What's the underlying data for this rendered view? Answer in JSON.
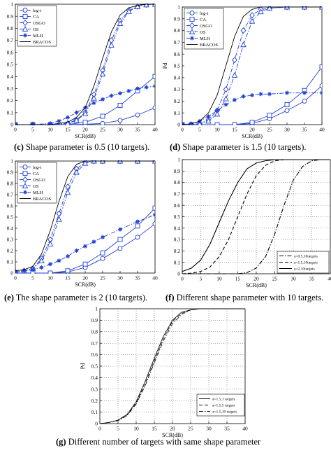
{
  "chart_data": [
    {
      "id": "c",
      "type": "line",
      "caption_label": "(c)",
      "caption_text": "Shape parameter is 0.5 (10 targets).",
      "xlabel": "SCR(dB)",
      "ylabel": "Pd",
      "xlim": [
        0,
        40
      ],
      "ylim": [
        0,
        1
      ],
      "xticks": [
        "0",
        "5",
        "10",
        "15",
        "20",
        "25",
        "30",
        "35",
        "40"
      ],
      "yticks": [
        "0",
        "0.1",
        "0.2",
        "0.3",
        "0.4",
        "0.5",
        "0.6",
        "0.7",
        "0.8",
        "0.9",
        "1"
      ],
      "grid": false,
      "legend_position": "top-left",
      "legend_entries": [
        "log-t",
        "CA",
        "OSGO",
        "OS",
        "MLH",
        "BRACOS"
      ],
      "series": [
        {
          "name": "log-t",
          "marker": "circle",
          "dash": "solid",
          "x": [
            0,
            5,
            10,
            15,
            20,
            25,
            30,
            35,
            40
          ],
          "y": [
            0,
            0,
            0,
            0,
            0.003,
            0.01,
            0.035,
            0.08,
            0.14
          ]
        },
        {
          "name": "CA",
          "marker": "square",
          "dash": "solid",
          "x": [
            0,
            5,
            10,
            15,
            20,
            25,
            30,
            35,
            40
          ],
          "y": [
            0,
            0,
            0,
            0.002,
            0.02,
            0.07,
            0.16,
            0.28,
            0.4
          ]
        },
        {
          "name": "OSGO",
          "marker": "diamond",
          "dash": "dashdot",
          "x": [
            0,
            5,
            10,
            15,
            17.5,
            20,
            22.5,
            25,
            27.5,
            30,
            32.5,
            35,
            37.5,
            40
          ],
          "y": [
            0,
            0,
            0,
            0.01,
            0.04,
            0.1,
            0.25,
            0.45,
            0.7,
            0.86,
            0.95,
            0.98,
            0.995,
            1
          ]
        },
        {
          "name": "OS",
          "marker": "triangle",
          "dash": "dashdot",
          "x": [
            0,
            5,
            10,
            15,
            17.5,
            20,
            22.5,
            25,
            27.5,
            30,
            32.5,
            35,
            37.5,
            40
          ],
          "y": [
            0,
            0,
            0,
            0.01,
            0.035,
            0.09,
            0.22,
            0.42,
            0.66,
            0.84,
            0.94,
            0.98,
            0.995,
            1
          ]
        },
        {
          "name": "MLH",
          "marker": "star",
          "dash": "dashdot",
          "x": [
            0,
            5,
            10,
            12.5,
            15,
            17.5,
            20,
            22.5,
            25,
            27.5,
            30,
            32.5,
            35,
            37.5,
            40
          ],
          "y": [
            0,
            0,
            0.01,
            0.03,
            0.06,
            0.1,
            0.14,
            0.18,
            0.21,
            0.24,
            0.26,
            0.28,
            0.3,
            0.31,
            0.32
          ]
        },
        {
          "name": "BRACOS",
          "marker": "none",
          "dash": "solid",
          "x": [
            0,
            5,
            10,
            15,
            17.5,
            20,
            22.5,
            25,
            27.5,
            30,
            32.5,
            35,
            37.5,
            40
          ],
          "y": [
            0,
            0,
            0,
            0.02,
            0.06,
            0.14,
            0.32,
            0.55,
            0.77,
            0.91,
            0.97,
            0.99,
            1,
            1
          ]
        }
      ]
    },
    {
      "id": "d",
      "type": "line",
      "caption_label": "(d)",
      "caption_text": "Shape parameter is 1.5 (10 targets).",
      "xlabel": "SCR(dB)",
      "ylabel": "Pd",
      "xlim": [
        0,
        40
      ],
      "ylim": [
        0,
        1
      ],
      "xticks": [
        "0",
        "5",
        "10",
        "15",
        "20",
        "25",
        "30",
        "35",
        "40"
      ],
      "yticks": [
        "0",
        "0.1",
        "0.2",
        "0.3",
        "0.4",
        "0.5",
        "0.6",
        "0.7",
        "0.8",
        "0.9",
        "1"
      ],
      "grid": false,
      "legend_position": "top-left",
      "legend_entries": [
        "log-t",
        "CA",
        "OSGO",
        "OS",
        "MLH",
        "BRACOS"
      ],
      "series": [
        {
          "name": "log-t",
          "marker": "circle",
          "dash": "solid",
          "x": [
            0,
            5,
            10,
            15,
            20,
            25,
            30,
            35,
            40
          ],
          "y": [
            0,
            0,
            0,
            0,
            0.01,
            0.05,
            0.12,
            0.2,
            0.33
          ]
        },
        {
          "name": "CA",
          "marker": "square",
          "dash": "solid",
          "x": [
            0,
            5,
            10,
            15,
            20,
            25,
            30,
            35,
            40
          ],
          "y": [
            0,
            0,
            0,
            0,
            0.02,
            0.08,
            0.17,
            0.29,
            0.49
          ]
        },
        {
          "name": "OSGO",
          "marker": "diamond",
          "dash": "dashdot",
          "x": [
            0,
            2.5,
            5,
            7.5,
            10,
            12.5,
            15,
            17.5,
            20,
            22.5,
            25,
            30,
            35,
            40
          ],
          "y": [
            0,
            0,
            0.01,
            0.04,
            0.12,
            0.3,
            0.55,
            0.8,
            0.93,
            0.98,
            0.99,
            1,
            1,
            1
          ]
        },
        {
          "name": "OS",
          "marker": "triangle",
          "dash": "dashdot",
          "x": [
            0,
            2.5,
            5,
            7.5,
            10,
            12.5,
            15,
            17.5,
            20,
            22.5,
            25,
            30,
            35,
            40
          ],
          "y": [
            0,
            0,
            0.005,
            0.03,
            0.09,
            0.22,
            0.42,
            0.68,
            0.88,
            0.96,
            0.99,
            1,
            1,
            1
          ]
        },
        {
          "name": "MLH",
          "marker": "star",
          "dash": "dashdot",
          "x": [
            0,
            2.5,
            5,
            7.5,
            10,
            12.5,
            15,
            17.5,
            20,
            22.5,
            25,
            30,
            35,
            40
          ],
          "y": [
            0,
            0.01,
            0.03,
            0.07,
            0.12,
            0.17,
            0.21,
            0.24,
            0.25,
            0.26,
            0.26,
            0.27,
            0.27,
            0.27
          ]
        },
        {
          "name": "BRACOS",
          "marker": "none",
          "dash": "solid",
          "x": [
            0,
            2.5,
            5,
            7.5,
            10,
            12.5,
            15,
            17.5,
            20,
            22.5,
            25,
            30,
            35,
            40
          ],
          "y": [
            0,
            0.005,
            0.03,
            0.1,
            0.25,
            0.5,
            0.75,
            0.92,
            0.98,
            1,
            1,
            1,
            1,
            1
          ]
        }
      ]
    },
    {
      "id": "e",
      "type": "line",
      "caption_label": "(e)",
      "caption_text": "The shape parameter is 2 (10 targets).",
      "xlabel": "SCR(dB)",
      "ylabel": "Pd",
      "xlim": [
        0,
        40
      ],
      "ylim": [
        0,
        1
      ],
      "xticks": [
        "0",
        "5",
        "10",
        "15",
        "20",
        "25",
        "30",
        "35",
        "40"
      ],
      "yticks": [
        "0",
        "0.1",
        "0.2",
        "0.3",
        "0.4",
        "0.5",
        "0.6",
        "0.7",
        "0.8",
        "0.9",
        "1"
      ],
      "grid": false,
      "legend_position": "top-left",
      "legend_entries": [
        "log-t",
        "CA",
        "OSGO",
        "OS",
        "MLH",
        "BRACOS"
      ],
      "series": [
        {
          "name": "log-t",
          "marker": "circle",
          "dash": "solid",
          "x": [
            0,
            5,
            10,
            15,
            20,
            25,
            30,
            35,
            40
          ],
          "y": [
            0,
            0,
            0,
            0.01,
            0.05,
            0.13,
            0.22,
            0.32,
            0.44
          ]
        },
        {
          "name": "CA",
          "marker": "square",
          "dash": "solid",
          "x": [
            0,
            5,
            10,
            15,
            20,
            25,
            30,
            35,
            40
          ],
          "y": [
            0,
            0,
            0,
            0.02,
            0.08,
            0.18,
            0.3,
            0.42,
            0.58
          ]
        },
        {
          "name": "OSGO",
          "marker": "diamond",
          "dash": "dashdot",
          "x": [
            0,
            2.5,
            5,
            7.5,
            10,
            12.5,
            15,
            17.5,
            20,
            22.5,
            25,
            30,
            35,
            40
          ],
          "y": [
            0.01,
            0.02,
            0.04,
            0.13,
            0.3,
            0.53,
            0.77,
            0.93,
            0.99,
            1,
            1,
            1,
            1,
            1
          ]
        },
        {
          "name": "OS",
          "marker": "triangle",
          "dash": "dashdot",
          "x": [
            0,
            2.5,
            5,
            7.5,
            10,
            12.5,
            15,
            17.5,
            20,
            22.5,
            25,
            30,
            35,
            40
          ],
          "y": [
            0.01,
            0.02,
            0.04,
            0.11,
            0.26,
            0.48,
            0.72,
            0.9,
            0.98,
            1,
            1,
            1,
            1,
            1
          ]
        },
        {
          "name": "MLH",
          "marker": "star",
          "dash": "dashdot",
          "x": [
            0,
            2.5,
            5,
            7.5,
            10,
            12.5,
            15,
            17.5,
            20,
            22.5,
            25,
            30,
            35,
            40
          ],
          "y": [
            0.01,
            0.02,
            0.03,
            0.05,
            0.08,
            0.11,
            0.15,
            0.2,
            0.24,
            0.28,
            0.32,
            0.39,
            0.46,
            0.52
          ]
        },
        {
          "name": "BRACOS",
          "marker": "none",
          "dash": "solid",
          "x": [
            0,
            2.5,
            5,
            7.5,
            10,
            12.5,
            15,
            17.5,
            20,
            22.5,
            25,
            30,
            35,
            40
          ],
          "y": [
            0.02,
            0.03,
            0.06,
            0.17,
            0.38,
            0.64,
            0.86,
            0.97,
            1,
            1,
            1,
            1,
            1,
            1
          ]
        }
      ]
    },
    {
      "id": "f",
      "type": "line",
      "caption_label": "(f)",
      "caption_text": "Different shape parameter with 10 targets.",
      "xlabel": "SCR(dB)",
      "ylabel": "",
      "xlim": [
        0,
        40
      ],
      "ylim": [
        0,
        1
      ],
      "xticks": [
        "0",
        "5",
        "10",
        "15",
        "20",
        "25",
        "30",
        "35",
        "40"
      ],
      "yticks": [
        "0",
        "0.1",
        "0.2",
        "0.3",
        "0.4",
        "0.5",
        "0.6",
        "0.7",
        "0.8",
        "0.9",
        "1"
      ],
      "grid": true,
      "legend_position": "bottom-right",
      "legend_entries": [
        "a=0.5,10targets",
        "a=1.5,10targets",
        "a=2,10targets"
      ],
      "series": [
        {
          "name": "a=0.5,10targets",
          "marker": "none",
          "dash": "dashdot",
          "x": [
            0,
            15,
            17.5,
            20,
            22.5,
            25,
            27.5,
            30,
            32.5,
            35,
            37.5,
            40
          ],
          "y": [
            0,
            0,
            0.01,
            0.05,
            0.15,
            0.35,
            0.6,
            0.82,
            0.94,
            0.99,
            1,
            1
          ]
        },
        {
          "name": "a=1.5,10targets",
          "marker": "none",
          "dash": "dashed",
          "x": [
            0,
            2.5,
            5,
            7.5,
            10,
            12.5,
            15,
            17.5,
            20,
            22.5,
            25,
            27.5,
            30,
            35,
            40
          ],
          "y": [
            0,
            0.005,
            0.02,
            0.06,
            0.15,
            0.3,
            0.5,
            0.7,
            0.86,
            0.95,
            0.99,
            1,
            1,
            1,
            1
          ]
        },
        {
          "name": "a=2,10targets",
          "marker": "none",
          "dash": "solid",
          "x": [
            0,
            2.5,
            5,
            7.5,
            10,
            12.5,
            15,
            17.5,
            20,
            22.5,
            25,
            30,
            35,
            40
          ],
          "y": [
            0.02,
            0.05,
            0.12,
            0.26,
            0.45,
            0.64,
            0.8,
            0.92,
            0.97,
            0.99,
            1,
            1,
            1,
            1
          ]
        }
      ]
    },
    {
      "id": "g",
      "type": "line",
      "caption_label": "(g)",
      "caption_text": "Different number of targets with same shape parameter",
      "xlabel": "SCR(dB)",
      "ylabel": "Pd",
      "xlim": [
        0,
        40
      ],
      "ylim": [
        0,
        1
      ],
      "xticks": [
        "0",
        "5",
        "10",
        "15",
        "20",
        "25",
        "30",
        "35",
        "40"
      ],
      "yticks": [
        "0",
        "0.1",
        "0.2",
        "0.3",
        "0.4",
        "0.5",
        "0.6",
        "0.7",
        "0.8",
        "0.9",
        "1"
      ],
      "grid": true,
      "legend_position": "bottom-right",
      "legend_entries": [
        "a=1.5,1 targets",
        "a=1.5,5 targets",
        "a=1.5,10 targets"
      ],
      "series": [
        {
          "name": "a=1.5,1 targets",
          "marker": "none",
          "dash": "solid",
          "x": [
            0,
            2.5,
            5,
            7.5,
            10,
            12.5,
            15,
            17.5,
            20,
            22.5,
            25,
            27.5,
            30,
            35,
            40
          ],
          "y": [
            0,
            0.01,
            0.03,
            0.08,
            0.19,
            0.37,
            0.57,
            0.76,
            0.9,
            0.97,
            0.99,
            1,
            1,
            1,
            1
          ]
        },
        {
          "name": "a=1.5,5 targets",
          "marker": "none",
          "dash": "dashed",
          "x": [
            0,
            2.5,
            5,
            7.5,
            10,
            12.5,
            15,
            17.5,
            20,
            22.5,
            25,
            27.5,
            30,
            35,
            40
          ],
          "y": [
            0,
            0.01,
            0.03,
            0.075,
            0.18,
            0.35,
            0.55,
            0.74,
            0.89,
            0.96,
            0.99,
            1,
            1,
            1,
            1
          ]
        },
        {
          "name": "a=1.5,10 targets",
          "marker": "none",
          "dash": "dashdot",
          "x": [
            0,
            2.5,
            5,
            7.5,
            10,
            12.5,
            15,
            17.5,
            20,
            22.5,
            25,
            27.5,
            30,
            35,
            40
          ],
          "y": [
            0,
            0.01,
            0.025,
            0.07,
            0.17,
            0.33,
            0.53,
            0.72,
            0.87,
            0.95,
            0.99,
            1,
            1,
            1,
            1
          ]
        }
      ]
    }
  ]
}
